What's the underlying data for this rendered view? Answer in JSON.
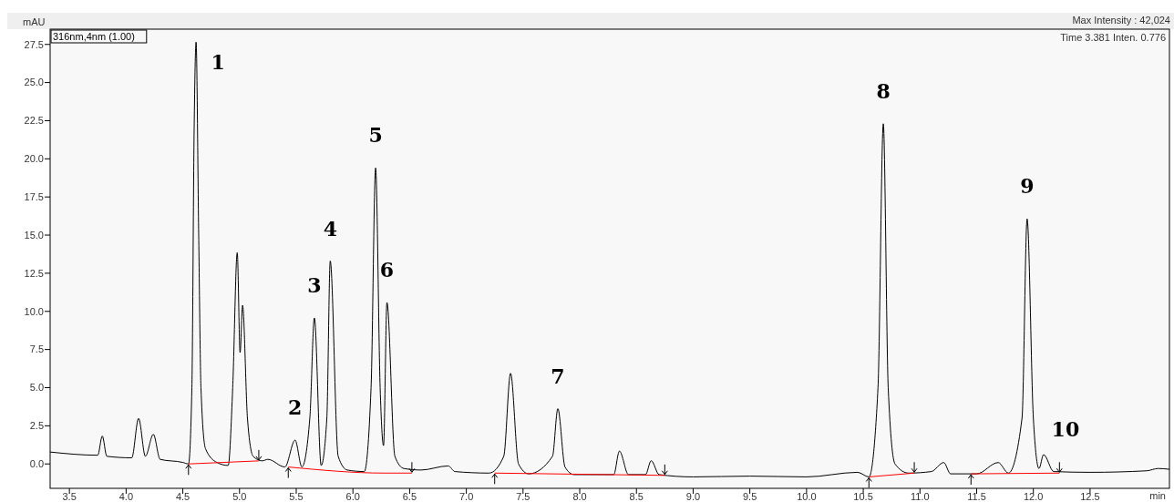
{
  "chart_data": {
    "type": "line",
    "xlabel": "min",
    "ylabel": "mAU",
    "xlim": [
      3.33,
      13.2
    ],
    "ylim": [
      -1.6,
      28.5
    ],
    "xticks": [
      {
        "value": 3.5,
        "label": "3.5"
      },
      {
        "value": 4,
        "label": "4.0"
      },
      {
        "value": 4.5,
        "label": "4.5"
      },
      {
        "value": 5,
        "label": "5.0"
      },
      {
        "value": 5.5,
        "label": "5.5"
      },
      {
        "value": 6,
        "label": "6.0"
      },
      {
        "value": 6.5,
        "label": "6.5"
      },
      {
        "value": 7,
        "label": "7.0"
      },
      {
        "value": 7.5,
        "label": "7.5"
      },
      {
        "value": 8,
        "label": "8.0"
      },
      {
        "value": 8.5,
        "label": "8.5"
      },
      {
        "value": 9,
        "label": "9.0"
      },
      {
        "value": 9.5,
        "label": "9.5"
      },
      {
        "value": 10,
        "label": "10.0"
      },
      {
        "value": 10.5,
        "label": "10.5"
      },
      {
        "value": 11,
        "label": "11.0"
      },
      {
        "value": 11.5,
        "label": "11.5"
      },
      {
        "value": 12,
        "label": "12.0"
      },
      {
        "value": 12.5,
        "label": "12.5"
      }
    ],
    "yticks": [
      {
        "value": 0,
        "label": "0.0"
      },
      {
        "value": 2.5,
        "label": "2.5"
      },
      {
        "value": 5,
        "label": "5.0"
      },
      {
        "value": 7.5,
        "label": "7.5"
      },
      {
        "value": 10,
        "label": "10.0"
      },
      {
        "value": 12.5,
        "label": "12.5"
      },
      {
        "value": 15,
        "label": "15.0"
      },
      {
        "value": 17.5,
        "label": "17.5"
      },
      {
        "value": 20,
        "label": "20.0"
      },
      {
        "value": 22.5,
        "label": "22.5"
      },
      {
        "value": 25,
        "label": "25.0"
      },
      {
        "value": 27.5,
        "label": "27.5"
      }
    ],
    "grid": false,
    "marker": "none",
    "line_style": "solid",
    "series": [
      {
        "color": "#000000",
        "x": [
          3.33,
          3.75,
          3.79,
          3.83,
          4.05,
          4.11,
          4.17,
          4.24,
          4.3,
          4.5,
          4.55,
          4.58,
          4.6,
          4.617,
          4.64,
          4.66,
          4.7,
          4.8,
          4.9,
          4.94,
          4.98,
          5.005,
          5.027,
          5.07,
          5.12,
          5.2,
          5.25,
          5.4,
          5.49,
          5.55,
          5.62,
          5.66,
          5.72,
          5.77,
          5.8,
          5.87,
          5.95,
          6.1,
          6.16,
          6.2,
          6.24,
          6.27,
          6.3,
          6.37,
          6.45,
          6.6,
          6.84,
          6.9,
          7.2,
          7.33,
          7.39,
          7.46,
          7.55,
          7.76,
          7.807,
          7.87,
          7.95,
          8.3,
          8.35,
          8.43,
          8.58,
          8.63,
          8.7,
          9.0,
          9.5,
          10.0,
          10.45,
          10.55,
          10.63,
          10.677,
          10.72,
          10.78,
          10.9,
          11.1,
          11.21,
          11.27,
          11.5,
          11.69,
          11.78,
          11.9,
          11.945,
          12.0,
          12.05,
          12.09,
          12.18,
          12.5,
          13.0,
          13.1,
          13.2
        ],
        "values": [
          0.78,
          0.57,
          1.83,
          0.5,
          0.4,
          2.99,
          0.5,
          1.94,
          0.3,
          0.1,
          0.0,
          5,
          22,
          27.65,
          15,
          5,
          1,
          0.1,
          -0.1,
          5,
          13.85,
          7.3,
          10.4,
          3,
          0.5,
          0.2,
          0.3,
          -0.2,
          1.56,
          -0.2,
          3,
          9.57,
          -0.1,
          3,
          13.3,
          0.5,
          -0.4,
          -0.5,
          5,
          19.4,
          5,
          1.2,
          10.58,
          0.5,
          -0.3,
          -0.4,
          -0.13,
          -0.5,
          -0.6,
          0.5,
          5.94,
          0,
          -0.65,
          0.5,
          3.62,
          -0.2,
          -0.7,
          -0.7,
          0.84,
          -0.7,
          -0.7,
          0.21,
          -0.7,
          -0.85,
          -0.8,
          -0.85,
          -0.55,
          -0.85,
          5,
          22.3,
          5,
          0,
          -0.6,
          -0.5,
          0.09,
          -0.65,
          -0.65,
          0.09,
          -0.6,
          3,
          16.06,
          3,
          -0.3,
          0.61,
          -0.5,
          -0.55,
          -0.45,
          -0.3,
          -0.35
        ]
      },
      {
        "color": "#ff0000",
        "x": [
          4.55,
          5.17,
          5.18,
          5.43,
          6.28,
          6.52,
          6.53,
          7.25,
          8.75,
          8.76,
          10.55,
          10.95,
          10.96,
          11.45,
          12.23
        ],
        "values": [
          0.0,
          0.2,
          null,
          -0.2,
          -0.6,
          -0.6,
          null,
          -0.6,
          -0.75,
          null,
          -0.85,
          -0.6,
          null,
          -0.65,
          -0.6
        ]
      }
    ],
    "annotations": [
      "316nm,4nm (1.00)",
      "Max Intensity : 42,024",
      "Time 3.381 Inten. 0.776",
      {
        "text": "1",
        "x": 4.617,
        "y": 27.65
      },
      {
        "text": "2",
        "x": 5.49,
        "y": 1.56
      },
      {
        "text": "3",
        "x": 5.66,
        "y": 9.57
      },
      {
        "text": "4",
        "x": 5.8,
        "y": 13.3
      },
      {
        "text": "5",
        "x": 6.2,
        "y": 19.4
      },
      {
        "text": "6",
        "x": 6.3,
        "y": 10.58
      },
      {
        "text": "7",
        "x": 7.807,
        "y": 3.62
      },
      {
        "text": "8",
        "x": 10.677,
        "y": 22.3
      },
      {
        "text": "9",
        "x": 11.945,
        "y": 16.06
      },
      {
        "text": "10",
        "x": 12.09,
        "y": 0.61
      }
    ]
  }
}
